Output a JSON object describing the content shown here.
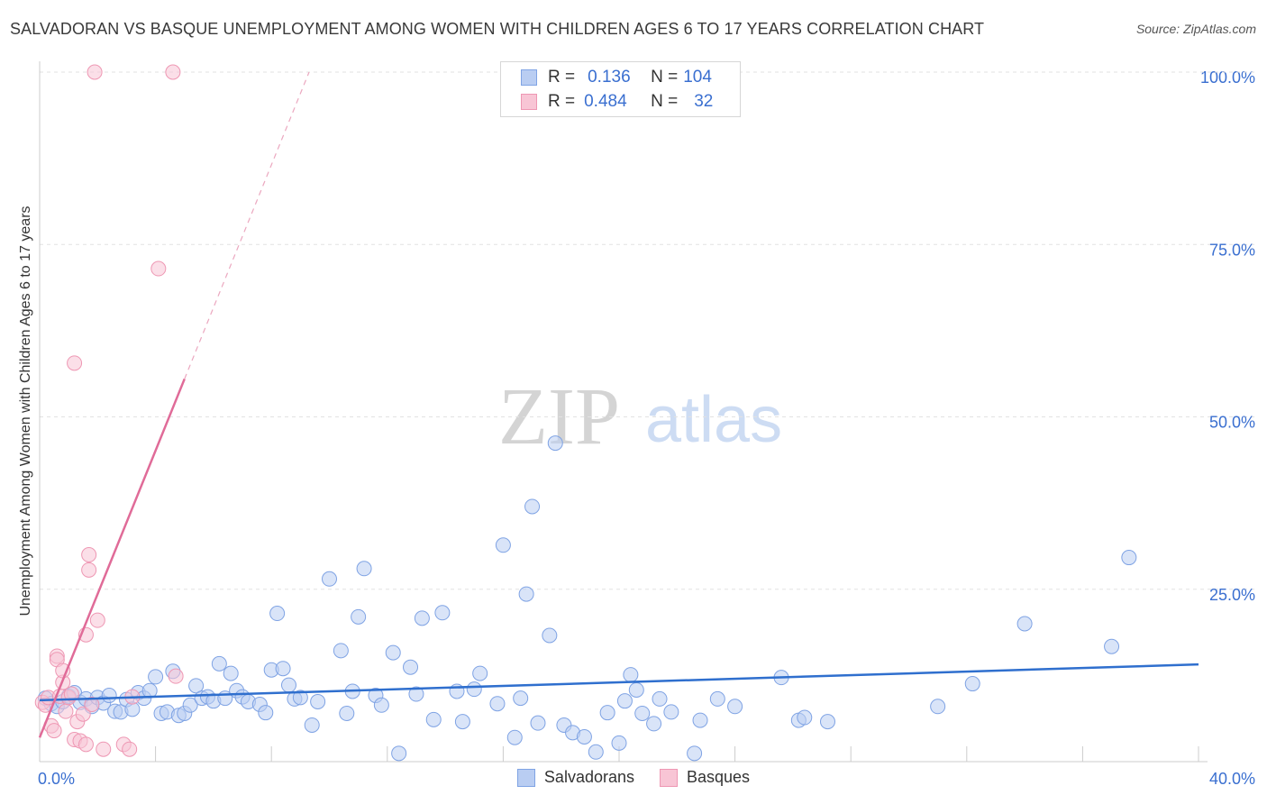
{
  "title": "SALVADORAN VS BASQUE UNEMPLOYMENT AMONG WOMEN WITH CHILDREN AGES 6 TO 17 YEARS CORRELATION CHART",
  "source": "Source: ZipAtlas.com",
  "watermark": {
    "zip": "ZIP",
    "atlas": "atlas"
  },
  "legend": {
    "r_label": "R =",
    "n_label": "N =",
    "rows": [
      {
        "series": "Salvadorans",
        "r": "0.136",
        "n": "104",
        "color": "#b9cdf2"
      },
      {
        "series": "Basques",
        "r": "0.484",
        "n": "32",
        "color": "#f8c5d5"
      }
    ]
  },
  "colors": {
    "blue_line": "#2f6fce",
    "pink_line": "#e06b98",
    "blue_fill": "#b9cdf2",
    "pink_fill": "#f8c5d5",
    "axis_text": "#3a6fd0",
    "grid": "#e2e2e2"
  },
  "chart_data": {
    "type": "scatter",
    "title": "SALVADORAN VS BASQUE UNEMPLOYMENT AMONG WOMEN WITH CHILDREN AGES 6 TO 17 YEARS CORRELATION CHART",
    "xlabel": "",
    "ylabel": "Unemployment Among Women with Children Ages 6 to 17 years",
    "xlim": [
      0,
      40
    ],
    "ylim": [
      0,
      100
    ],
    "x_tick_labels": [
      {
        "value": 0,
        "label": "0.0%"
      },
      {
        "value": 40,
        "label": "40.0%"
      }
    ],
    "y_tick_labels": [
      {
        "value": 100,
        "label": "100.0%"
      },
      {
        "value": 75,
        "label": "75.0%"
      },
      {
        "value": 50,
        "label": "50.0%"
      },
      {
        "value": 25,
        "label": "25.0%"
      }
    ],
    "x_minor_ticks": [
      0,
      4,
      8,
      12,
      16,
      20,
      24,
      28,
      32,
      36,
      40
    ],
    "series": [
      {
        "name": "Salvadorans",
        "color": "#b9cdf2",
        "stroke": "#7fa3e4",
        "trend": {
          "x0": 0,
          "y0": 8.9,
          "x1": 40,
          "y1": 14.1,
          "style": "solid"
        },
        "points": [
          [
            0.2,
            9.2
          ],
          [
            0.4,
            8.4
          ],
          [
            0.6,
            8.0
          ],
          [
            0.8,
            8.7
          ],
          [
            1.0,
            9.5
          ],
          [
            1.2,
            10.0
          ],
          [
            1.4,
            8.6
          ],
          [
            1.6,
            9.1
          ],
          [
            1.8,
            8.0
          ],
          [
            2.0,
            9.3
          ],
          [
            2.2,
            8.5
          ],
          [
            2.4,
            9.6
          ],
          [
            2.6,
            7.3
          ],
          [
            2.8,
            7.2
          ],
          [
            3.0,
            9.0
          ],
          [
            3.2,
            7.6
          ],
          [
            3.4,
            10.0
          ],
          [
            3.6,
            9.2
          ],
          [
            3.8,
            10.3
          ],
          [
            4.0,
            12.3
          ],
          [
            4.2,
            7.0
          ],
          [
            4.4,
            7.2
          ],
          [
            4.6,
            13.1
          ],
          [
            4.8,
            6.7
          ],
          [
            5.0,
            7.0
          ],
          [
            5.2,
            8.2
          ],
          [
            5.4,
            11.0
          ],
          [
            5.6,
            9.2
          ],
          [
            5.8,
            9.4
          ],
          [
            6.0,
            8.8
          ],
          [
            6.2,
            14.2
          ],
          [
            6.4,
            9.2
          ],
          [
            6.6,
            12.8
          ],
          [
            6.8,
            10.3
          ],
          [
            7.0,
            9.4
          ],
          [
            7.2,
            8.7
          ],
          [
            7.6,
            8.3
          ],
          [
            7.8,
            7.1
          ],
          [
            8.0,
            13.3
          ],
          [
            8.2,
            21.5
          ],
          [
            8.4,
            13.5
          ],
          [
            8.6,
            11.1
          ],
          [
            8.8,
            9.1
          ],
          [
            9.0,
            9.3
          ],
          [
            9.4,
            5.3
          ],
          [
            9.6,
            8.7
          ],
          [
            10.0,
            26.5
          ],
          [
            10.4,
            16.1
          ],
          [
            10.6,
            7.0
          ],
          [
            10.8,
            10.2
          ],
          [
            11.0,
            21.0
          ],
          [
            11.2,
            28.0
          ],
          [
            11.6,
            9.6
          ],
          [
            11.8,
            8.2
          ],
          [
            12.2,
            15.8
          ],
          [
            12.4,
            1.2
          ],
          [
            12.8,
            13.7
          ],
          [
            13.0,
            9.8
          ],
          [
            13.2,
            20.8
          ],
          [
            13.6,
            6.1
          ],
          [
            13.9,
            21.6
          ],
          [
            14.4,
            10.2
          ],
          [
            14.6,
            5.8
          ],
          [
            15.0,
            10.5
          ],
          [
            15.2,
            12.8
          ],
          [
            15.8,
            8.4
          ],
          [
            16.0,
            31.4
          ],
          [
            16.4,
            3.5
          ],
          [
            16.6,
            9.2
          ],
          [
            16.8,
            24.3
          ],
          [
            17.0,
            37.0
          ],
          [
            17.2,
            5.6
          ],
          [
            17.6,
            18.3
          ],
          [
            17.8,
            46.2
          ],
          [
            18.1,
            5.3
          ],
          [
            18.4,
            4.2
          ],
          [
            18.8,
            3.6
          ],
          [
            19.2,
            1.4
          ],
          [
            19.6,
            7.1
          ],
          [
            20.0,
            2.7
          ],
          [
            20.2,
            8.8
          ],
          [
            20.4,
            12.6
          ],
          [
            20.6,
            10.4
          ],
          [
            20.8,
            7.0
          ],
          [
            21.2,
            5.5
          ],
          [
            21.4,
            9.1
          ],
          [
            21.8,
            7.2
          ],
          [
            22.6,
            1.2
          ],
          [
            22.8,
            6.0
          ],
          [
            23.4,
            9.1
          ],
          [
            24.0,
            8.0
          ],
          [
            25.6,
            12.2
          ],
          [
            26.2,
            6.0
          ],
          [
            26.4,
            6.4
          ],
          [
            27.2,
            5.8
          ],
          [
            31.0,
            8.0
          ],
          [
            32.2,
            11.3
          ],
          [
            34.0,
            20.0
          ],
          [
            37.0,
            16.7
          ],
          [
            37.6,
            29.6
          ]
        ]
      },
      {
        "name": "Basques",
        "color": "#f8c5d5",
        "stroke": "#ee97b3",
        "trend": {
          "x0": 0,
          "y0": 3.5,
          "x1": 5.0,
          "y1": 55.5,
          "style": "solid",
          "dashed_to": {
            "x": 9.3,
            "y": 100
          }
        },
        "points": [
          [
            0.1,
            8.6
          ],
          [
            0.2,
            8.2
          ],
          [
            0.3,
            9.3
          ],
          [
            0.4,
            5.2
          ],
          [
            0.5,
            4.5
          ],
          [
            0.6,
            15.3
          ],
          [
            0.6,
            14.8
          ],
          [
            0.7,
            9.5
          ],
          [
            0.8,
            11.5
          ],
          [
            0.8,
            13.2
          ],
          [
            0.9,
            7.3
          ],
          [
            1.0,
            9.3
          ],
          [
            1.1,
            9.8
          ],
          [
            1.2,
            3.2
          ],
          [
            1.3,
            5.8
          ],
          [
            1.4,
            3.0
          ],
          [
            1.5,
            6.9
          ],
          [
            1.6,
            2.5
          ],
          [
            1.7,
            27.8
          ],
          [
            1.8,
            8.3
          ],
          [
            2.0,
            20.5
          ],
          [
            2.2,
            1.8
          ],
          [
            2.9,
            2.5
          ],
          [
            3.1,
            1.8
          ],
          [
            3.2,
            9.4
          ],
          [
            1.2,
            57.8
          ],
          [
            1.6,
            18.4
          ],
          [
            1.7,
            30.0
          ],
          [
            4.7,
            12.4
          ],
          [
            4.1,
            71.5
          ],
          [
            1.9,
            100.0
          ],
          [
            4.6,
            100.0
          ]
        ]
      }
    ]
  },
  "bottom_legend": [
    {
      "label": "Salvadorans"
    },
    {
      "label": "Basques"
    }
  ]
}
